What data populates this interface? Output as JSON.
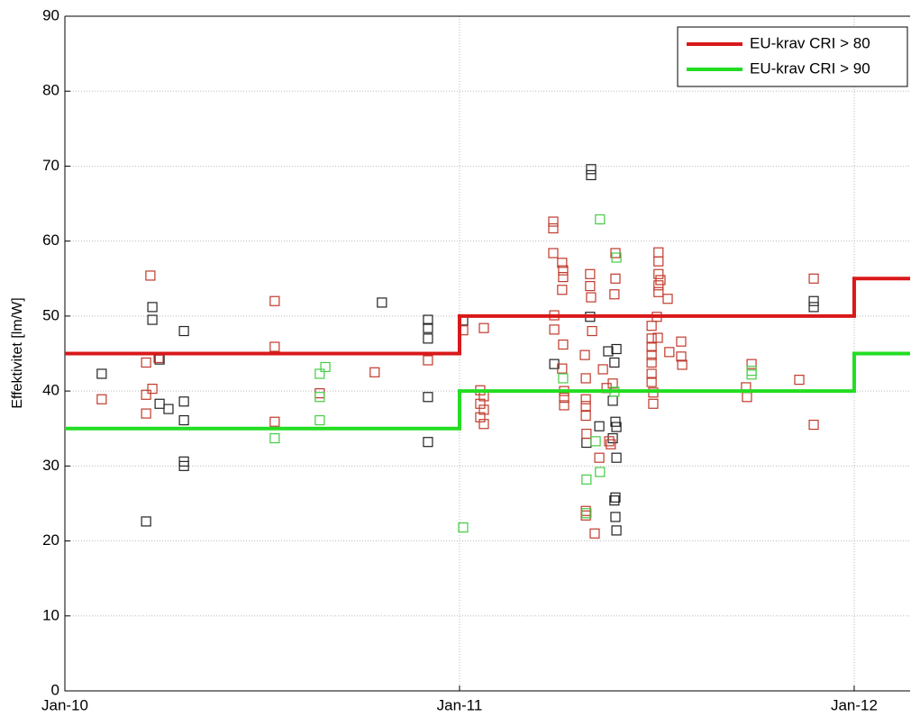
{
  "chart_data": {
    "type": "scatter",
    "ylabel": "Effektivitet [lm/W]",
    "xlim": [
      0,
      25.7
    ],
    "ylim": [
      0,
      90
    ],
    "xticks": [
      {
        "value": 0,
        "label": "Jan-10"
      },
      {
        "value": 12,
        "label": "Jan-11"
      },
      {
        "value": 24,
        "label": "Jan-12"
      }
    ],
    "yticks": [
      0,
      10,
      20,
      30,
      40,
      50,
      60,
      70,
      80,
      90
    ],
    "grid": true,
    "legend": "upper right",
    "series": [
      {
        "name": "EU-krav CRI > 80",
        "color": "#d9181a",
        "x": [
          0,
          12,
          12,
          24,
          24,
          25.7
        ],
        "values": [
          45,
          45,
          50,
          50,
          55,
          55
        ]
      },
      {
        "name": "EU-krav CRI > 90",
        "color": "#22dd22",
        "x": [
          0,
          12,
          12,
          24,
          24,
          25.7
        ],
        "values": [
          35,
          35,
          40,
          40,
          45,
          45
        ]
      }
    ],
    "points": [
      {
        "color": "#222222",
        "x": [
          1.12,
          2.47,
          2.66,
          2.66,
          2.88,
          2.88,
          3.15,
          3.62,
          3.62,
          3.62,
          3.62,
          3.62,
          9.64,
          11.04,
          11.04,
          11.04,
          11.04,
          11.04,
          12.11,
          14.88,
          16.0,
          16.0,
          15.97,
          15.86,
          16.25,
          16.52,
          16.77,
          16.71,
          16.66,
          16.74,
          16.77,
          16.66,
          16.77,
          16.74,
          16.71,
          16.74,
          16.77,
          22.77,
          22.77
        ],
        "values": [
          42.3,
          22.6,
          51.2,
          49.5,
          38.3,
          44.2,
          37.6,
          48.0,
          38.6,
          36.1,
          30.6,
          30.0,
          51.8,
          49.5,
          48.4,
          47.0,
          39.2,
          33.2,
          49.4,
          43.6,
          69.6,
          68.8,
          49.9,
          33.1,
          35.3,
          45.3,
          45.6,
          43.8,
          38.7,
          35.9,
          35.2,
          33.7,
          31.1,
          25.8,
          25.4,
          23.2,
          21.4,
          52.0,
          51.2
        ]
      },
      {
        "color": "#c0392b",
        "x": [
          1.12,
          2.6,
          2.47,
          2.66,
          2.47,
          2.47,
          2.85,
          6.38,
          6.38,
          6.38,
          7.75,
          9.42,
          11.04,
          12.11,
          12.74,
          12.63,
          12.74,
          12.63,
          12.74,
          12.63,
          12.74,
          14.85,
          14.85,
          14.85,
          15.12,
          15.15,
          15.15,
          15.12,
          14.88,
          14.88,
          15.15,
          15.12,
          15.18,
          15.18,
          15.18,
          15.97,
          15.97,
          16.0,
          16.03,
          15.81,
          15.84,
          15.84,
          15.84,
          15.84,
          15.86,
          15.84,
          15.84,
          16.11,
          16.36,
          16.47,
          16.55,
          16.6,
          16.25,
          16.74,
          16.74,
          16.71,
          16.66,
          18.05,
          18.05,
          18.05,
          18.11,
          18.05,
          18.05,
          18.0,
          18.33,
          17.84,
          17.84,
          17.84,
          17.84,
          17.84,
          17.84,
          17.84,
          17.89,
          18.03,
          18.38,
          18.74,
          18.74,
          18.77,
          20.88,
          20.71,
          20.74,
          22.33,
          22.77,
          22.77,
          17.89
        ],
        "values": [
          38.9,
          55.4,
          43.8,
          40.3,
          39.5,
          37.0,
          44.4,
          52.0,
          45.9,
          35.9,
          39.7,
          42.5,
          44.1,
          48.1,
          48.4,
          40.1,
          39.3,
          38.3,
          37.5,
          36.5,
          35.6,
          62.6,
          61.7,
          58.4,
          57.1,
          56.1,
          55.2,
          53.5,
          50.1,
          48.2,
          46.2,
          43.0,
          40.0,
          39.1,
          38.1,
          55.6,
          54.0,
          52.5,
          48.0,
          44.8,
          41.7,
          38.9,
          38.0,
          36.7,
          34.3,
          24.0,
          23.4,
          21.0,
          42.9,
          40.4,
          33.3,
          32.9,
          31.1,
          58.4,
          55.0,
          52.9,
          41.0,
          58.5,
          57.3,
          55.6,
          54.8,
          54.1,
          53.2,
          49.9,
          52.3,
          48.7,
          47.0,
          45.9,
          44.8,
          43.8,
          42.3,
          41.2,
          39.8,
          47.1,
          45.2,
          46.6,
          44.6,
          43.5,
          43.6,
          40.5,
          39.2,
          41.5,
          55.0,
          35.5,
          38.3
        ]
      },
      {
        "color": "#44cc44",
        "x": [
          6.38,
          7.75,
          7.92,
          7.75,
          7.75,
          12.11,
          16.27,
          16.77,
          16.71,
          16.14,
          16.27,
          15.86,
          15.86,
          15.15,
          20.88,
          20.88
        ],
        "values": [
          33.7,
          42.3,
          43.2,
          39.2,
          36.1,
          21.8,
          62.9,
          57.8,
          39.9,
          33.3,
          29.2,
          28.2,
          23.7,
          41.7,
          42.2,
          42.7
        ]
      }
    ]
  }
}
